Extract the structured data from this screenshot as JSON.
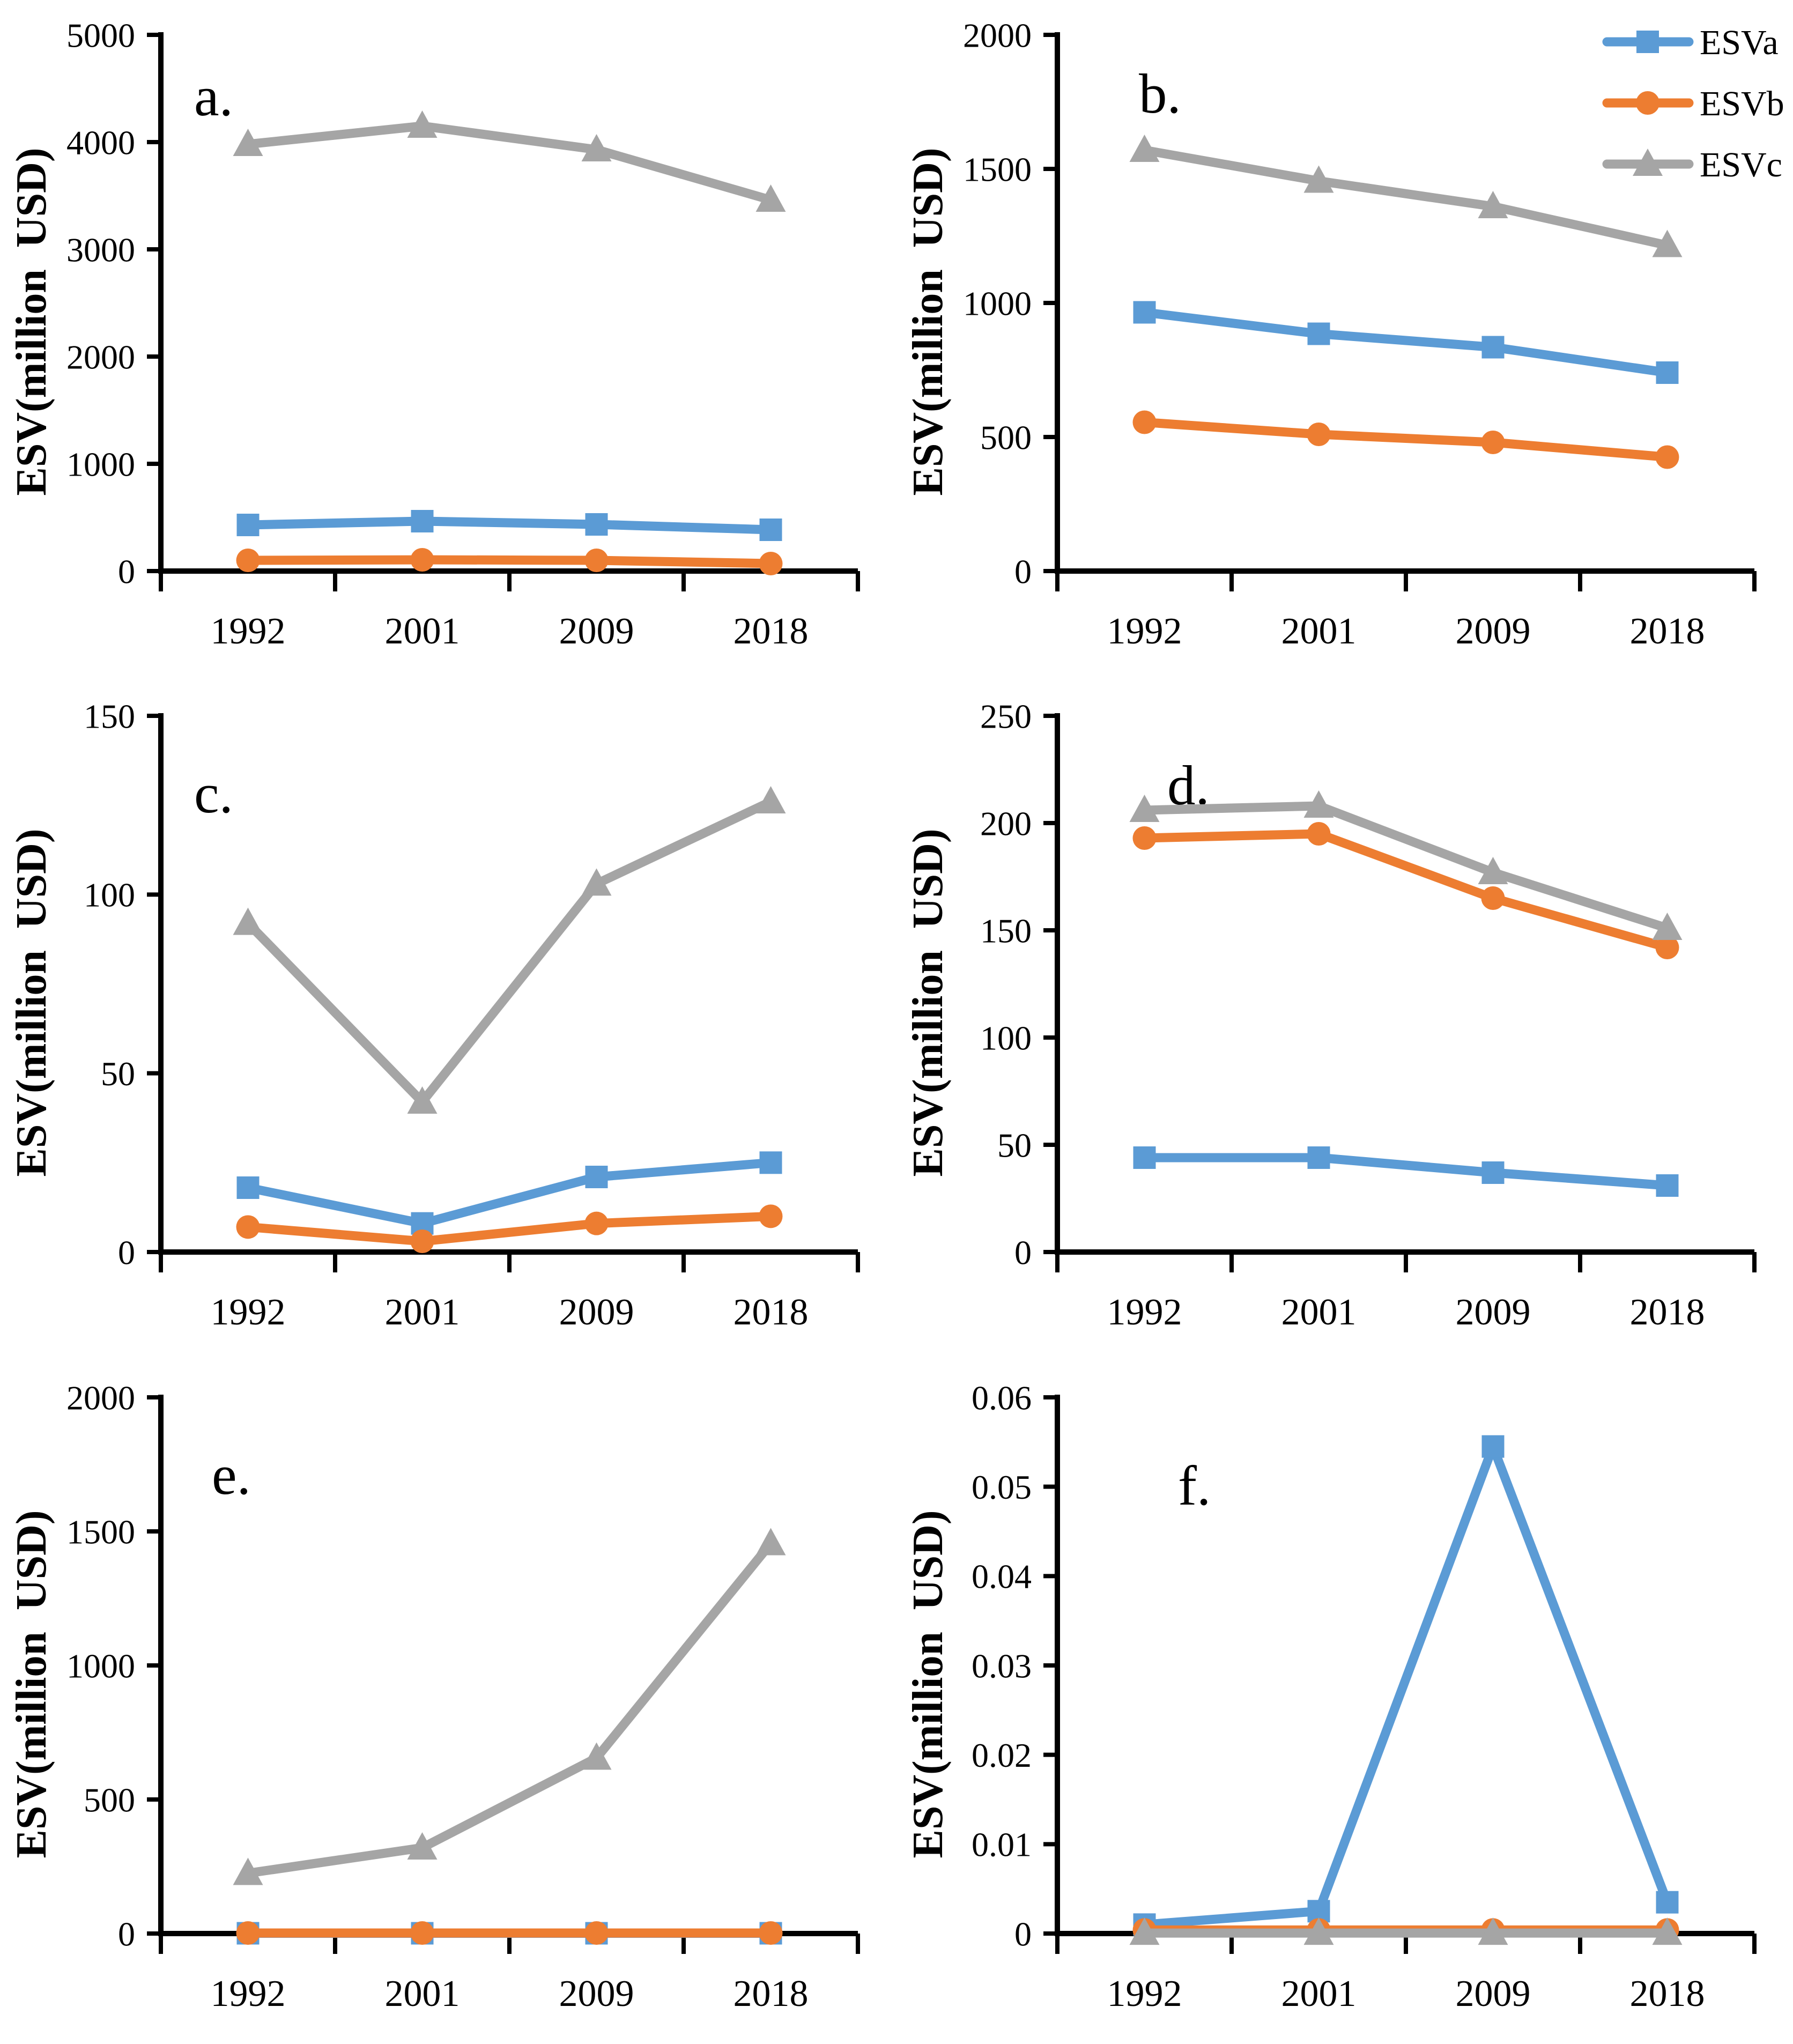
{
  "figure": {
    "background": "#ffffff",
    "ylabel": "ESV(million  USD)",
    "categories": [
      "1992",
      "2001",
      "2009",
      "2018"
    ],
    "axis_color": "#000000",
    "legend": {
      "position": "top-right-of-panel-b",
      "items": [
        {
          "label": "ESVa",
          "color": "#5B9BD5",
          "marker": "square"
        },
        {
          "label": "ESVb",
          "color": "#ED7D31",
          "marker": "circle"
        },
        {
          "label": "ESVc",
          "color": "#A5A5A5",
          "marker": "triangle"
        }
      ]
    }
  },
  "chart_data": [
    {
      "panel": "a",
      "letter": "a.",
      "type": "line",
      "grid": false,
      "xlabel": "",
      "ylabel": "ESV(million  USD)",
      "categories": [
        "1992",
        "2001",
        "2009",
        "2018"
      ],
      "ylim": [
        0,
        5000
      ],
      "ytick_labels": [
        "0",
        "1000",
        "2000",
        "3000",
        "4000",
        "5000"
      ],
      "series": [
        {
          "name": "ESVa",
          "values": [
            430,
            465,
            435,
            385
          ]
        },
        {
          "name": "ESVb",
          "values": [
            100,
            105,
            100,
            70
          ]
        },
        {
          "name": "ESVc",
          "values": [
            3980,
            4150,
            3930,
            3460
          ]
        }
      ],
      "show_legend": false,
      "letter_pos": [
        362,
        215
      ]
    },
    {
      "panel": "b",
      "letter": "b.",
      "type": "line",
      "grid": false,
      "xlabel": "",
      "ylabel": "ESV(million  USD)",
      "categories": [
        "1992",
        "2001",
        "2009",
        "2018"
      ],
      "ylim": [
        0,
        2000
      ],
      "ytick_labels": [
        "0",
        "500",
        "1000",
        "1500",
        "2000"
      ],
      "series": [
        {
          "name": "ESVa",
          "values": [
            965,
            885,
            835,
            740
          ]
        },
        {
          "name": "ESVb",
          "values": [
            555,
            510,
            480,
            425
          ]
        },
        {
          "name": "ESVc",
          "values": [
            1570,
            1455,
            1360,
            1215
          ]
        }
      ],
      "show_legend": true,
      "letter_pos": [
        452,
        210
      ]
    },
    {
      "panel": "c",
      "letter": "c.",
      "type": "line",
      "grid": false,
      "xlabel": "",
      "ylabel": "ESV(million  USD)",
      "categories": [
        "1992",
        "2001",
        "2009",
        "2018"
      ],
      "ylim": [
        0,
        150
      ],
      "ytick_labels": [
        "0",
        "50",
        "100",
        "150"
      ],
      "series": [
        {
          "name": "ESVa",
          "values": [
            18,
            8,
            21,
            25
          ]
        },
        {
          "name": "ESVb",
          "values": [
            7,
            3,
            8,
            10
          ]
        },
        {
          "name": "ESVc",
          "values": [
            92,
            42,
            103,
            126
          ]
        }
      ],
      "show_legend": false,
      "letter_pos": [
        362,
        245
      ]
    },
    {
      "panel": "d",
      "letter": "d.",
      "type": "line",
      "grid": false,
      "xlabel": "",
      "ylabel": "ESV(million  USD)",
      "categories": [
        "1992",
        "2001",
        "2009",
        "2018"
      ],
      "ylim": [
        0,
        250
      ],
      "ytick_labels": [
        "0",
        "50",
        "100",
        "150",
        "200",
        "250"
      ],
      "series": [
        {
          "name": "ESVa",
          "values": [
            44,
            44,
            37,
            31
          ]
        },
        {
          "name": "ESVb",
          "values": [
            193,
            195,
            165,
            142
          ]
        },
        {
          "name": "ESVc",
          "values": [
            206,
            208,
            177,
            151
          ]
        }
      ],
      "show_legend": false,
      "letter_pos": [
        505,
        230
      ]
    },
    {
      "panel": "e",
      "letter": "e.",
      "type": "line",
      "grid": false,
      "xlabel": "",
      "ylabel": "ESV(million  USD)",
      "categories": [
        "1992",
        "2001",
        "2009",
        "2018"
      ],
      "ylim": [
        0,
        2000
      ],
      "ytick_labels": [
        "0",
        "500",
        "1000",
        "1500",
        "2000"
      ],
      "series": [
        {
          "name": "ESVa",
          "values": [
            1,
            1,
            1,
            1
          ]
        },
        {
          "name": "ESVb",
          "values": [
            2,
            2,
            2,
            2
          ]
        },
        {
          "name": "ESVc",
          "values": [
            225,
            320,
            655,
            1455
          ]
        }
      ],
      "show_legend": false,
      "letter_pos": [
        395,
        245
      ]
    },
    {
      "panel": "f",
      "letter": "f.",
      "type": "line",
      "grid": false,
      "xlabel": "",
      "ylabel": "ESV(million  USD)",
      "categories": [
        "1992",
        "2001",
        "2009",
        "2018"
      ],
      "ylim": [
        0,
        0.06
      ],
      "ytick_labels": [
        "0",
        "0.01",
        "0.02",
        "0.03",
        "0.04",
        "0.05",
        "0.06"
      ],
      "series": [
        {
          "name": "ESVa",
          "values": [
            0.001,
            0.0025,
            0.0545,
            0.0035
          ]
        },
        {
          "name": "ESVb",
          "values": [
            0.0004,
            0.0004,
            0.0004,
            0.0004
          ]
        },
        {
          "name": "ESVc",
          "values": [
            5e-05,
            5e-05,
            5e-05,
            5e-05
          ]
        }
      ],
      "show_legend": false,
      "letter_pos": [
        525,
        265
      ]
    }
  ]
}
